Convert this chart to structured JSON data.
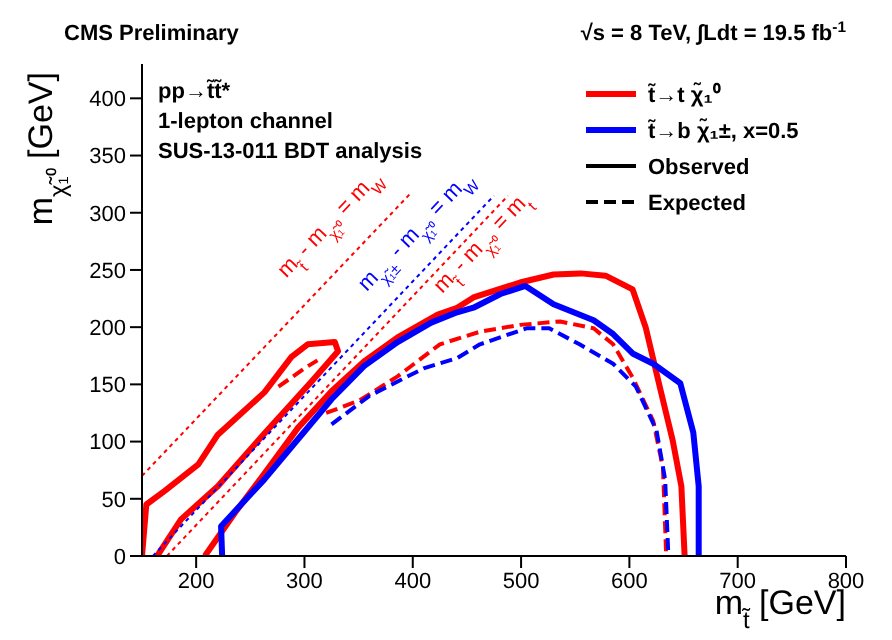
{
  "chart_data": {
    "type": "line",
    "title": "CMS Preliminary",
    "subtitle": "√s = 8 TeV, ∫Ldt = 19.5 fb$^{-1}$",
    "xlabel": "m$_{t̃}$ [GeV]",
    "ylabel": "m$_{χ̃₁⁰}$ [GeV]",
    "xlim": [
      150,
      800
    ],
    "xticks": [
      200,
      300,
      400,
      500,
      600,
      700,
      800
    ],
    "ylim": [
      0,
      430
    ],
    "yticks": [
      0,
      50,
      100,
      150,
      200,
      250,
      300,
      350,
      400
    ],
    "legend": "top right",
    "series": [
      {
        "name": "t̃→t χ̃₁⁰",
        "color": "#ff0000",
        "line_style": "solid",
        "x": [
          150,
          154,
          171,
          202,
          220,
          263,
          288,
          303,
          328,
          331,
          307,
          263,
          220,
          186,
          164,
          186,
          208,
          236,
          263,
          294,
          325,
          355,
          386,
          423,
          441,
          456,
          499,
          530,
          555,
          578,
          603,
          615,
          628,
          640,
          648,
          651
        ],
        "values": [
          0,
          45,
          57,
          80,
          106,
          143,
          174,
          185,
          187,
          179,
          153,
          107,
          61,
          32,
          0,
          null,
          0,
          38,
          72,
          112,
          144,
          170,
          191,
          211,
          217,
          226,
          239,
          246,
          247,
          245,
          233,
          200,
          148,
          101,
          61,
          0
        ]
      },
      {
        "name": "t̃→b χ̃₁±, x=0.5",
        "color": "#0000ff",
        "line_style": "solid",
        "x": [
          224,
          223,
          263,
          294,
          325,
          355,
          386,
          417,
          441,
          456,
          481,
          504,
          530,
          567,
          585,
          603,
          622,
          647,
          659,
          664,
          664
        ],
        "values": [
          0,
          26,
          67,
          102,
          137,
          166,
          187,
          204,
          213,
          217,
          229,
          236,
          220,
          206,
          194,
          177,
          168,
          151,
          108,
          61,
          0
        ]
      },
      {
        "color": "#ff0000",
        "line_style": "dashed",
        "x": [
          276,
          288,
          300,
          312,
          318,
          320,
          351,
          386,
          425,
          462,
          499,
          536,
          567,
          585,
          603,
          622,
          631,
          634
        ],
        "values": [
          148,
          156,
          164,
          171,
          null,
          125,
          136,
          157,
          185,
          196,
          202,
          205,
          199,
          185,
          156,
          118,
          77,
          0
        ]
      },
      {
        "color": "#0000ff",
        "line_style": "dashed",
        "x": [
          325,
          360,
          410,
          441,
          462,
          505,
          526,
          554,
          585,
          606,
          625,
          633,
          636
        ],
        "values": [
          115,
          140,
          164,
          173,
          185,
          199,
          199,
          185,
          168,
          148,
          110,
          67,
          0
        ]
      },
      {
        "color": "#ff0000",
        "line_style": "dotted",
        "x": [
          150,
          397
        ],
        "values": [
          70,
          316
        ]
      },
      {
        "color": "#0000ff",
        "line_style": "dotted",
        "x": [
          160,
          475
        ],
        "values": [
          0,
          315
        ]
      },
      {
        "color": "#ff0000",
        "line_style": "dotted",
        "x": [
          173,
          488
        ],
        "values": [
          0,
          315
        ]
      }
    ],
    "annotations": [
      "pp→t̃t̃*",
      "1-lepton channel",
      "SUS-13-011 BDT analysis",
      "Observed",
      "Expected",
      "m$_{t̃}$ - m$_{χ̃₁⁰}$ = m$_{W}$",
      "m$_{χ̃₁±}$ - m$_{χ̃₁⁰}$ = m$_{W}$",
      "m$_{t̃}$ - m$_{χ̃₁⁰}$ = m$_{t}$"
    ]
  }
}
